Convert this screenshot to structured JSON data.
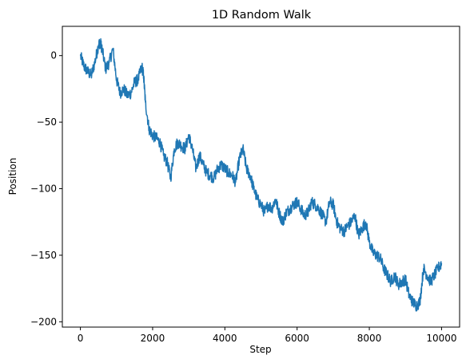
{
  "chart_data": {
    "type": "line",
    "title": "1D Random Walk",
    "xlabel": "Step",
    "ylabel": "Position",
    "xlim": [
      -500,
      10500
    ],
    "ylim": [
      -204,
      22
    ],
    "xticks": [
      0,
      2000,
      4000,
      6000,
      8000,
      10000
    ],
    "yticks": [
      0,
      -50,
      -100,
      -150,
      -200
    ],
    "ytick_labels": [
      "0",
      "−50",
      "−100",
      "−150",
      "−200"
    ],
    "grid": false,
    "line_color": "#1f77b4",
    "series": [
      {
        "x": [
          0,
          100,
          200,
          300,
          400,
          500,
          550,
          600,
          700,
          800,
          900,
          1000,
          1100,
          1200,
          1300,
          1400,
          1500,
          1600,
          1700,
          1750,
          1800,
          1900,
          2000,
          2100,
          2200,
          2300,
          2400,
          2500,
          2600,
          2700,
          2800,
          2900,
          3000,
          3100,
          3200,
          3300,
          3400,
          3500,
          3600,
          3700,
          3800,
          3900,
          4000,
          4100,
          4200,
          4300,
          4400,
          4500,
          4600,
          4700,
          4800,
          4900,
          5000,
          5100,
          5200,
          5300,
          5400,
          5500,
          5600,
          5700,
          5800,
          5900,
          6000,
          6100,
          6200,
          6300,
          6400,
          6500,
          6600,
          6700,
          6800,
          6900,
          7000,
          7100,
          7200,
          7300,
          7400,
          7500,
          7600,
          7700,
          7800,
          7900,
          8000,
          8100,
          8200,
          8300,
          8400,
          8500,
          8600,
          8700,
          8800,
          8900,
          9000,
          9100,
          9200,
          9300,
          9400,
          9500,
          9600,
          9700,
          9800,
          9900,
          10000
        ],
        "y": [
          0,
          -8,
          -12,
          -15,
          -5,
          8,
          10,
          5,
          -10,
          -5,
          5,
          -18,
          -28,
          -25,
          -30,
          -28,
          -20,
          -18,
          -8,
          -15,
          -35,
          -55,
          -60,
          -62,
          -65,
          -75,
          -80,
          -92,
          -70,
          -65,
          -68,
          -70,
          -60,
          -70,
          -85,
          -75,
          -82,
          -88,
          -90,
          -92,
          -85,
          -82,
          -85,
          -88,
          -90,
          -95,
          -78,
          -70,
          -85,
          -90,
          -100,
          -108,
          -112,
          -118,
          -112,
          -115,
          -108,
          -118,
          -125,
          -118,
          -115,
          -112,
          -110,
          -115,
          -120,
          -118,
          -110,
          -112,
          -115,
          -120,
          -125,
          -110,
          -112,
          -125,
          -130,
          -132,
          -128,
          -125,
          -120,
          -135,
          -130,
          -125,
          -140,
          -148,
          -150,
          -152,
          -160,
          -165,
          -170,
          -165,
          -172,
          -170,
          -168,
          -180,
          -185,
          -188,
          -185,
          -160,
          -165,
          -170,
          -165,
          -160,
          -156
        ]
      }
    ]
  }
}
